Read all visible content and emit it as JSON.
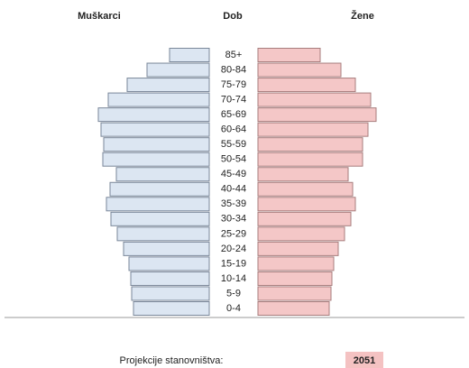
{
  "chart_data": {
    "type": "pyramid",
    "category_label": "Dob",
    "categories": [
      "85+",
      "80-84",
      "75-79",
      "70-74",
      "65-69",
      "60-64",
      "55-59",
      "50-54",
      "45-49",
      "40-44",
      "35-39",
      "30-34",
      "25-29",
      "20-24",
      "15-19",
      "10-14",
      "5-9",
      "0-4"
    ],
    "series": [
      {
        "name": "Muškarci",
        "color": "#dce6f2",
        "values": [
          44,
          69,
          91,
          112,
          123,
          120,
          117,
          118,
          103,
          110,
          114,
          109,
          102,
          95,
          89,
          87,
          86,
          84
        ]
      },
      {
        "name": "Žene",
        "color": "#f4c7c7",
        "values": [
          69,
          92,
          108,
          125,
          131,
          122,
          116,
          116,
          100,
          105,
          108,
          103,
          96,
          89,
          84,
          82,
          81,
          79
        ]
      }
    ],
    "xlim": [
      0,
      140
    ],
    "footer": {
      "label": "Projekcije stanovništva:",
      "year": "2051"
    }
  }
}
